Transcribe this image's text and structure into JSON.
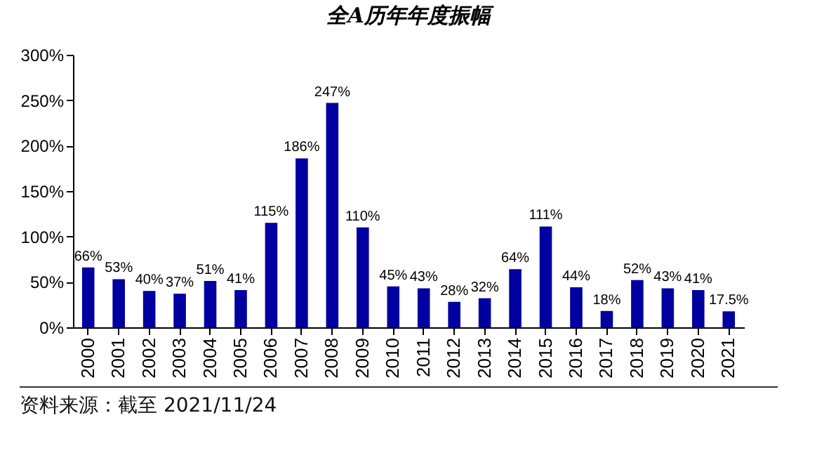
{
  "chart_data": {
    "type": "bar",
    "title": "全A历年年度振幅",
    "categories": [
      "2000",
      "2001",
      "2002",
      "2003",
      "2004",
      "2005",
      "2006",
      "2007",
      "2008",
      "2009",
      "2010",
      "2011",
      "2012",
      "2013",
      "2014",
      "2015",
      "2016",
      "2017",
      "2018",
      "2019",
      "2020",
      "2021"
    ],
    "values": [
      66,
      53,
      40,
      37,
      51,
      41,
      115,
      186,
      247,
      110,
      45,
      43,
      28,
      32,
      64,
      111,
      44,
      18,
      52,
      43,
      41,
      17.5
    ],
    "value_labels": [
      "66%",
      "53%",
      "40%",
      "37%",
      "51%",
      "41%",
      "115%",
      "186%",
      "247%",
      "110%",
      "45%",
      "43%",
      "28%",
      "32%",
      "64%",
      "111%",
      "44%",
      "18%",
      "52%",
      "43%",
      "41%",
      "17.5%"
    ],
    "color": "#0000a0",
    "ylim": [
      0,
      300
    ],
    "yticks": [
      {
        "value": 0,
        "label": "0%"
      },
      {
        "value": 50,
        "label": "50%"
      },
      {
        "value": 100,
        "label": "100%"
      },
      {
        "value": 150,
        "label": "150%"
      },
      {
        "value": 200,
        "label": "200%"
      },
      {
        "value": 250,
        "label": "250%"
      },
      {
        "value": 300,
        "label": "300%"
      }
    ],
    "annotations": [
      "资料来源：截至 2021/11/24"
    ]
  }
}
